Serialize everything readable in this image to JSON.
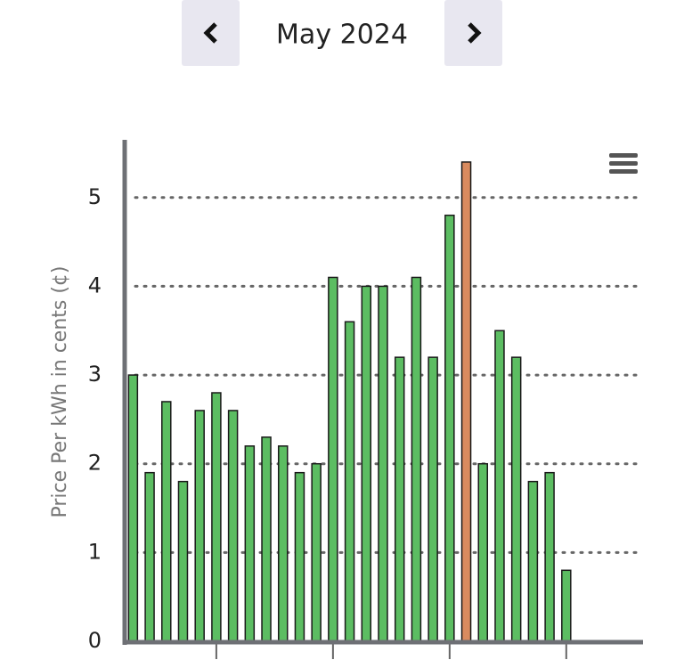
{
  "header": {
    "month": "May 2024"
  },
  "chart_data": {
    "type": "bar",
    "y_label": "Price Per kWh in cents (¢)",
    "categories": [
      null,
      null,
      null,
      null,
      null,
      null,
      null,
      null,
      null,
      null,
      null,
      null,
      null,
      null,
      null,
      null,
      null,
      null,
      null,
      null,
      null,
      null,
      null,
      null,
      null,
      null,
      null,
      null,
      null,
      null,
      null
    ],
    "values": [
      3.0,
      1.9,
      2.7,
      1.8,
      2.6,
      2.8,
      2.6,
      2.2,
      2.3,
      2.2,
      1.9,
      2.0,
      4.1,
      3.6,
      4.0,
      4.0,
      3.2,
      4.1,
      3.2,
      4.8,
      5.4,
      2.0,
      3.5,
      3.2,
      1.8,
      1.9,
      0.8,
      null,
      null,
      null,
      null
    ],
    "colors": [
      "#5cbd62",
      "#5cbd62",
      "#5cbd62",
      "#5cbd62",
      "#5cbd62",
      "#5cbd62",
      "#5cbd62",
      "#5cbd62",
      "#5cbd62",
      "#5cbd62",
      "#5cbd62",
      "#5cbd62",
      "#5cbd62",
      "#5cbd62",
      "#5cbd62",
      "#5cbd62",
      "#5cbd62",
      "#5cbd62",
      "#5cbd62",
      "#5cbd62",
      "#d98b5f",
      "#5cbd62",
      "#5cbd62",
      "#5cbd62",
      "#5cbd62",
      "#5cbd62",
      "#5cbd62",
      null,
      null,
      null,
      null
    ],
    "ylim": [
      0,
      5.6
    ],
    "yticks": [
      0,
      1,
      2,
      3,
      4,
      5
    ],
    "xticks": [
      5,
      12,
      19,
      26
    ],
    "grid": true
  }
}
